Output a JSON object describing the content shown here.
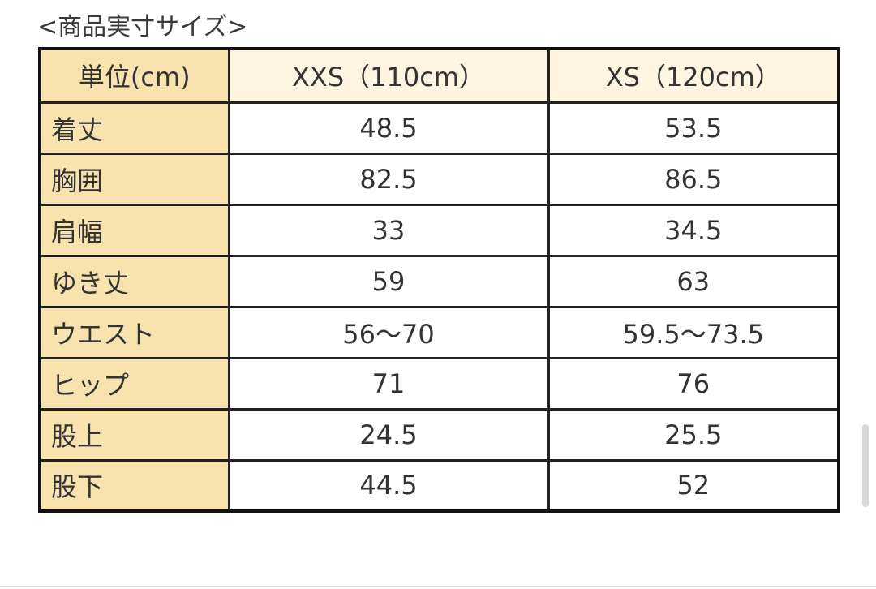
{
  "title": "<商品実寸サイズ>",
  "table": {
    "headers": [
      "単位(cm)",
      "XXS（110cm）",
      "XS（120cm）"
    ],
    "rows": [
      [
        "着丈",
        "48.5",
        "53.5"
      ],
      [
        "胸囲",
        "82.5",
        "86.5"
      ],
      [
        "肩幅",
        "33",
        "34.5"
      ],
      [
        "ゆき丈",
        "59",
        "63"
      ],
      [
        "ウエスト",
        "56〜70",
        "59.5〜73.5"
      ],
      [
        "ヒップ",
        "71",
        "76"
      ],
      [
        "股上",
        "24.5",
        "25.5"
      ],
      [
        "股下",
        "44.5",
        "52"
      ]
    ]
  },
  "colors": {
    "label_bg": "#f8e2ae",
    "header_bg": "#fdf5e0",
    "border": "#222222"
  }
}
